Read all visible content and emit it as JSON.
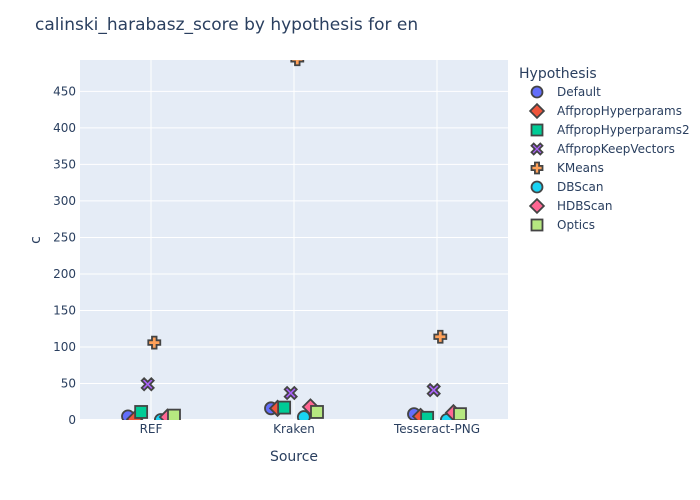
{
  "chart_data": {
    "type": "scatter",
    "title": "calinski_harabasz_score by hypothesis for en",
    "xlabel": "Source",
    "ylabel": "c",
    "categories": [
      "REF",
      "Kraken",
      "Tesseract-PNG"
    ],
    "ylim": [
      0,
      493
    ],
    "yticks": [
      0,
      50,
      100,
      150,
      200,
      250,
      300,
      350,
      400,
      450
    ],
    "grid": true,
    "legend_title": "Hypothesis",
    "legend_position": "right",
    "series": [
      {
        "name": "Default",
        "symbol": "circle",
        "color": "#636efa",
        "values": [
          5,
          16,
          8
        ]
      },
      {
        "name": "AffpropHyperparams",
        "symbol": "diamond",
        "color": "#EF553B",
        "values": [
          1,
          16,
          5
        ]
      },
      {
        "name": "AffpropHyperparams2",
        "symbol": "square",
        "color": "#00cc96",
        "values": [
          11,
          17,
          3
        ]
      },
      {
        "name": "AffpropKeepVectors",
        "symbol": "x",
        "color": "#ab63fa",
        "values": [
          49,
          37,
          41
        ]
      },
      {
        "name": "KMeans",
        "symbol": "cross",
        "color": "#FFA15A",
        "values": [
          106,
          494,
          114
        ]
      },
      {
        "name": "DBScan",
        "symbol": "circle",
        "color": "#19d3f3",
        "values": [
          0,
          4,
          0
        ]
      },
      {
        "name": "HDBScan",
        "symbol": "diamond",
        "color": "#FF6692",
        "values": [
          4,
          18,
          10
        ]
      },
      {
        "name": "Optics",
        "symbol": "square",
        "color": "#B6E880",
        "values": [
          6,
          11,
          8
        ]
      }
    ]
  }
}
